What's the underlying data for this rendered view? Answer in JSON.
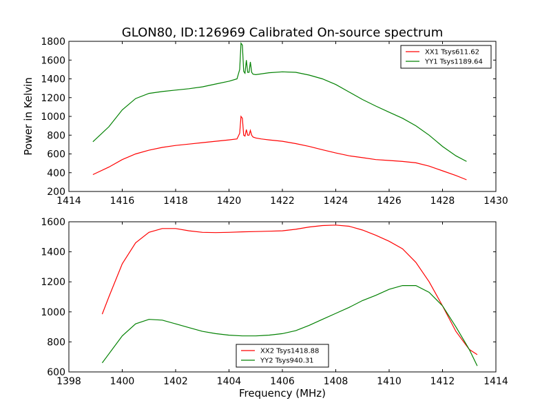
{
  "figure": {
    "title": "GLON80, ID:126969 Calibrated On-source spectrum"
  },
  "chart_data": [
    {
      "type": "line",
      "xlabel": "",
      "ylabel": "Power in Kelvin",
      "xlim": [
        1414,
        1430
      ],
      "ylim": [
        200,
        1800
      ],
      "xticks": [
        1414,
        1416,
        1418,
        1420,
        1422,
        1424,
        1426,
        1428,
        1430
      ],
      "yticks": [
        200,
        400,
        600,
        800,
        1000,
        1200,
        1400,
        1600,
        1800
      ],
      "legend": "top-right",
      "grid": false,
      "series": [
        {
          "name": "XX1 Tsys611.62",
          "color": "#ff0000",
          "x": [
            1414.9,
            1415.5,
            1416.0,
            1416.5,
            1417.0,
            1417.5,
            1418.0,
            1418.5,
            1419.0,
            1419.5,
            1420.0,
            1420.3,
            1420.4,
            1420.45,
            1420.5,
            1420.55,
            1420.6,
            1420.65,
            1420.7,
            1420.75,
            1420.8,
            1420.85,
            1420.9,
            1421.0,
            1421.2,
            1421.5,
            1422.0,
            1422.5,
            1423.0,
            1423.5,
            1424.0,
            1424.5,
            1425.0,
            1425.5,
            1426.0,
            1426.5,
            1427.0,
            1427.5,
            1428.0,
            1428.5,
            1428.9
          ],
          "values": [
            380,
            460,
            540,
            600,
            640,
            670,
            690,
            705,
            720,
            735,
            750,
            760,
            820,
            1000,
            980,
            800,
            790,
            860,
            800,
            800,
            850,
            800,
            780,
            770,
            760,
            750,
            735,
            710,
            680,
            645,
            610,
            580,
            560,
            540,
            530,
            520,
            505,
            470,
            420,
            370,
            325
          ]
        },
        {
          "name": "YY1 Tsys1189.64",
          "color": "#008000",
          "x": [
            1414.9,
            1415.5,
            1416.0,
            1416.5,
            1417.0,
            1417.5,
            1418.0,
            1418.5,
            1419.0,
            1419.5,
            1420.0,
            1420.3,
            1420.4,
            1420.45,
            1420.5,
            1420.55,
            1420.6,
            1420.65,
            1420.7,
            1420.75,
            1420.8,
            1420.85,
            1420.9,
            1421.0,
            1421.5,
            1422.0,
            1422.5,
            1423.0,
            1423.5,
            1424.0,
            1424.5,
            1425.0,
            1425.5,
            1426.0,
            1426.5,
            1427.0,
            1427.5,
            1428.0,
            1428.5,
            1428.9
          ],
          "values": [
            730,
            890,
            1070,
            1190,
            1245,
            1265,
            1280,
            1295,
            1315,
            1345,
            1375,
            1400,
            1500,
            1780,
            1760,
            1480,
            1460,
            1600,
            1470,
            1470,
            1580,
            1470,
            1450,
            1445,
            1465,
            1475,
            1470,
            1440,
            1400,
            1340,
            1260,
            1180,
            1110,
            1045,
            980,
            900,
            800,
            680,
            580,
            520
          ]
        }
      ]
    },
    {
      "type": "line",
      "xlabel": "Frequency (MHz)",
      "ylabel": "",
      "xlim": [
        1398,
        1414
      ],
      "ylim": [
        600,
        1600
      ],
      "xticks": [
        1398,
        1400,
        1402,
        1404,
        1406,
        1408,
        1410,
        1412,
        1414
      ],
      "yticks": [
        600,
        800,
        1000,
        1200,
        1400,
        1600
      ],
      "legend": "lower-center",
      "grid": false,
      "series": [
        {
          "name": "XX2 Tsys1418.88",
          "color": "#ff0000",
          "x": [
            1399.25,
            1399.5,
            1400.0,
            1400.5,
            1401.0,
            1401.5,
            1402.0,
            1402.5,
            1403.0,
            1403.5,
            1404.0,
            1404.5,
            1405.0,
            1405.5,
            1406.0,
            1406.5,
            1407.0,
            1407.5,
            1408.0,
            1408.5,
            1409.0,
            1409.5,
            1410.0,
            1410.5,
            1411.0,
            1411.5,
            1412.0,
            1412.5,
            1413.0,
            1413.3
          ],
          "values": [
            985,
            1100,
            1320,
            1460,
            1530,
            1555,
            1555,
            1540,
            1530,
            1528,
            1530,
            1533,
            1535,
            1537,
            1540,
            1550,
            1565,
            1575,
            1578,
            1570,
            1545,
            1510,
            1470,
            1420,
            1330,
            1200,
            1040,
            870,
            750,
            715
          ]
        },
        {
          "name": "YY2 Tsys940.31",
          "color": "#008000",
          "x": [
            1399.25,
            1399.5,
            1400.0,
            1400.5,
            1401.0,
            1401.5,
            1402.0,
            1402.5,
            1403.0,
            1403.5,
            1404.0,
            1404.5,
            1405.0,
            1405.5,
            1406.0,
            1406.5,
            1407.0,
            1407.5,
            1408.0,
            1408.5,
            1409.0,
            1409.5,
            1410.0,
            1410.5,
            1411.0,
            1411.5,
            1412.0,
            1412.5,
            1413.0,
            1413.3
          ],
          "values": [
            660,
            720,
            840,
            920,
            950,
            945,
            920,
            895,
            870,
            855,
            845,
            840,
            840,
            845,
            855,
            875,
            910,
            950,
            990,
            1030,
            1075,
            1110,
            1150,
            1175,
            1175,
            1130,
            1040,
            900,
            750,
            640
          ]
        }
      ]
    }
  ]
}
